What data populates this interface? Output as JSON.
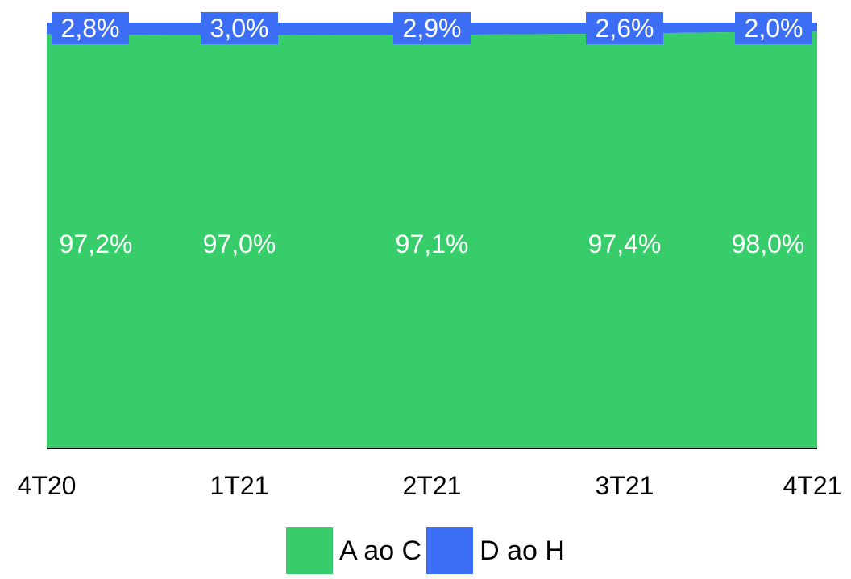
{
  "chart_data": {
    "type": "area",
    "stacked": true,
    "normalized": true,
    "categories": [
      "4T20",
      "1T21",
      "2T21",
      "3T21",
      "4T21"
    ],
    "series": [
      {
        "name": "A ao C",
        "values": [
          97.2,
          97.0,
          97.1,
          97.4,
          98.0
        ],
        "labels": [
          "97,2%",
          "97,0%",
          "97,1%",
          "97,4%",
          "98,0%"
        ],
        "color": "#37cd6b"
      },
      {
        "name": "D ao H",
        "values": [
          2.8,
          3.0,
          2.9,
          2.6,
          2.0
        ],
        "labels": [
          "2,8%",
          "3,0%",
          "2,9%",
          "2,6%",
          "2,0%"
        ],
        "color": "#3b6ef5"
      }
    ],
    "ylim": [
      0,
      100
    ],
    "grid": false,
    "legend_position": "bottom",
    "title": "",
    "xlabel": "",
    "ylabel": ""
  }
}
